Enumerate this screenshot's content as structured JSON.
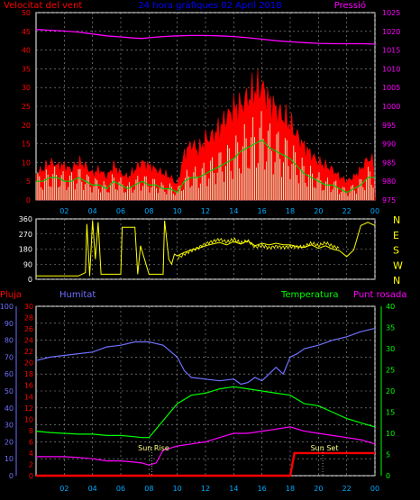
{
  "header": {
    "left_title": "Velocitat del vent",
    "center_title": "24 hora gràfiques 02 April 2018",
    "right_title": "Pressió"
  },
  "colors": {
    "wind": "#ff0000",
    "gust": "#ff0000",
    "gust_fill": "#ccffcc",
    "average": "#00cc00",
    "pressure": "#ff00ff",
    "direction": "#ffff00",
    "rain": "#ff0000",
    "humidity": "#7070ff",
    "temperature": "#00ff00",
    "dewpoint": "#ff00ff",
    "axis_left": "#ff0000",
    "axis_right": "#ff00ff",
    "axis_hum": "#7070ff",
    "axis_temp": "#00ff00",
    "grid": "#9a9a9a",
    "title": "#0000ff"
  },
  "x_ticks": [
    "02",
    "04",
    "06",
    "08",
    "10",
    "12",
    "14",
    "16",
    "18",
    "20",
    "22",
    "00"
  ],
  "chart_data": [
    {
      "type": "line",
      "panel": "wind",
      "x_range": [
        0,
        24
      ],
      "y_left": {
        "label": "Velocitat del vent",
        "range": [
          0,
          50
        ],
        "ticks": [
          0,
          5,
          10,
          15,
          20,
          25,
          30,
          35,
          40,
          45,
          50
        ]
      },
      "y_right": {
        "label": "Pressió",
        "range": [
          975,
          1025
        ],
        "ticks": [
          975,
          980,
          985,
          990,
          995,
          1000,
          1005,
          1010,
          1015,
          1020,
          1025
        ]
      },
      "series": [
        {
          "name": "Pressió",
          "x": [
            0,
            1,
            2,
            3,
            4,
            5,
            6,
            7,
            7.5,
            8,
            9,
            10,
            11,
            12,
            13,
            14,
            15,
            16,
            17,
            18,
            19,
            20,
            21,
            22,
            23,
            24
          ],
          "y": [
            1020.5,
            1020.3,
            1020.1,
            1019.8,
            1019.3,
            1018.8,
            1018.5,
            1018.2,
            1018.1,
            1018.3,
            1018.6,
            1018.8,
            1018.9,
            1018.9,
            1018.8,
            1018.6,
            1018.3,
            1017.9,
            1017.5,
            1017.2,
            1017,
            1016.8,
            1016.7,
            1016.7,
            1016.7,
            1016.6
          ]
        }
      ],
      "wind_envelope": {
        "x": [
          0,
          0.5,
          1,
          1.5,
          2,
          2.5,
          3,
          3.5,
          4,
          4.5,
          5,
          5.5,
          6,
          6.5,
          7,
          7.5,
          8,
          8.5,
          9,
          9.5,
          10,
          10.5,
          11,
          11.5,
          12,
          12.5,
          13,
          13.5,
          14,
          14.5,
          15,
          15.5,
          16,
          16.5,
          17,
          17.5,
          18,
          18.5,
          19,
          19.5,
          20,
          20.5,
          21,
          21.5,
          22,
          22.5,
          23,
          23.5,
          24
        ],
        "gust": [
          7,
          8,
          10,
          9,
          9,
          8,
          10,
          9,
          7,
          8,
          6,
          9,
          7,
          6,
          8,
          10,
          9,
          8,
          7,
          6,
          4,
          12,
          15,
          13,
          16,
          17,
          19,
          22,
          24,
          25,
          27,
          29,
          30,
          26,
          24,
          22,
          20,
          17,
          14,
          12,
          10,
          9,
          8,
          6,
          5,
          6,
          8,
          11,
          10
        ],
        "average": [
          5,
          5,
          6,
          6,
          5,
          5,
          6,
          5,
          4,
          4,
          3,
          5,
          4,
          3,
          4,
          5,
          4,
          4,
          3,
          3,
          2,
          5,
          6,
          6,
          7,
          8,
          9,
          10,
          11,
          13,
          14,
          15,
          16,
          14,
          13,
          12,
          11,
          9,
          7,
          6,
          5,
          4,
          4,
          3,
          2,
          3,
          4,
          6,
          6
        ]
      }
    },
    {
      "type": "line",
      "panel": "direction",
      "x_range": [
        0,
        24
      ],
      "y_left": {
        "range": [
          0,
          360
        ],
        "ticks": [
          0,
          90,
          180,
          270,
          360
        ]
      },
      "y_right_labels": [
        "N",
        "W",
        "S",
        "E",
        "N"
      ],
      "series": [
        {
          "name": "direction",
          "x": [
            0,
            1,
            2,
            3,
            3.5,
            3.6,
            3.8,
            4,
            4.2,
            4.4,
            4.6,
            5,
            6,
            6.1,
            6.5,
            7,
            7.2,
            7.4,
            8,
            9,
            9.1,
            9.4,
            9.6,
            9.8,
            10,
            10.5,
            11,
            11.5,
            12,
            12.5,
            13,
            13.5,
            14,
            14.5,
            15,
            15.5,
            16,
            16.5,
            17,
            17.5,
            18,
            18.5,
            19,
            19.5,
            20,
            20.5,
            21,
            21.5,
            22,
            22.5,
            23,
            23.5,
            24
          ],
          "y": [
            20,
            20,
            20,
            20,
            40,
            330,
            20,
            350,
            120,
            340,
            30,
            30,
            30,
            310,
            310,
            310,
            30,
            200,
            30,
            30,
            350,
            120,
            90,
            150,
            140,
            160,
            175,
            185,
            200,
            210,
            220,
            205,
            225,
            210,
            230,
            200,
            215,
            205,
            215,
            205,
            205,
            195,
            190,
            205,
            185,
            200,
            180,
            170,
            135,
            175,
            320,
            340,
            320
          ]
        }
      ]
    },
    {
      "type": "line",
      "panel": "temperature",
      "x_range": [
        0,
        24
      ],
      "y_far_left": {
        "label": "Humitat",
        "range": [
          0,
          100
        ],
        "ticks": [
          0,
          10,
          20,
          30,
          40,
          50,
          60,
          70,
          80,
          90,
          100
        ]
      },
      "y_left": {
        "label": "Pluja",
        "range": [
          0,
          30
        ],
        "ticks": [
          0,
          2,
          4,
          6,
          8,
          10,
          12,
          14,
          16,
          18,
          20,
          22,
          24,
          26,
          28,
          30
        ]
      },
      "y_right": {
        "label": "Temperatura",
        "range": [
          0,
          40
        ],
        "ticks": [
          0,
          5,
          10,
          15,
          20,
          25,
          30,
          35,
          40
        ]
      },
      "labels": {
        "rain": "Pluja",
        "humidity": "Humitat",
        "temperature": "Temperatura",
        "dewpoint": "Punt rosada"
      },
      "annotations": [
        {
          "text": "Sun Rise",
          "x": 8.2
        },
        {
          "text": "Sun Set",
          "x": 20.3
        }
      ],
      "series": [
        {
          "name": "Humitat",
          "x": [
            0,
            1,
            2,
            3,
            4,
            5,
            6,
            7,
            8,
            9,
            10,
            10.5,
            11,
            12,
            13,
            14,
            14.5,
            15,
            15.5,
            16,
            16.5,
            17,
            17.5,
            18,
            18.5,
            19,
            20,
            21,
            22,
            23,
            24
          ],
          "y": [
            68,
            70,
            71,
            72,
            73,
            76,
            77,
            79,
            79,
            77,
            70,
            62,
            58,
            57,
            56,
            57,
            54,
            55,
            58,
            56,
            60,
            64,
            60,
            70,
            72,
            75,
            77,
            80,
            82,
            85,
            87
          ]
        },
        {
          "name": "Temperatura",
          "x": [
            0,
            1,
            2,
            3,
            4,
            5,
            6,
            7,
            7.5,
            8,
            8.5,
            9,
            9.5,
            10,
            10.5,
            11,
            12,
            13,
            14,
            15,
            16,
            17,
            18,
            18.5,
            19,
            20,
            21,
            22,
            23,
            24
          ],
          "y": [
            10.5,
            10.2,
            10,
            9.8,
            9.8,
            9.5,
            9.5,
            9.2,
            9,
            9,
            11,
            13,
            15,
            17,
            18,
            19,
            19.5,
            20.5,
            21,
            20.5,
            20,
            19.5,
            19,
            18,
            17,
            16.5,
            15,
            13.5,
            12.5,
            11.5
          ]
        },
        {
          "name": "Punt rosada",
          "x": [
            0,
            1,
            2,
            3,
            4,
            5,
            6,
            7,
            7.5,
            8,
            8.5,
            9,
            10,
            11,
            12,
            13,
            14,
            15,
            16,
            17,
            18,
            19,
            20,
            21,
            22,
            23,
            24
          ],
          "y": [
            4.5,
            4.5,
            4.5,
            4.3,
            4,
            3.5,
            3.5,
            3.2,
            3,
            2.5,
            3,
            6,
            7,
            7.5,
            8,
            9,
            10,
            10,
            10.5,
            11,
            11.5,
            10.5,
            10,
            9.5,
            9,
            8.5,
            7.5
          ]
        },
        {
          "name": "Pluja",
          "x": [
            0,
            18,
            18.3,
            24
          ],
          "y": [
            0,
            0,
            4,
            4
          ]
        }
      ]
    }
  ]
}
